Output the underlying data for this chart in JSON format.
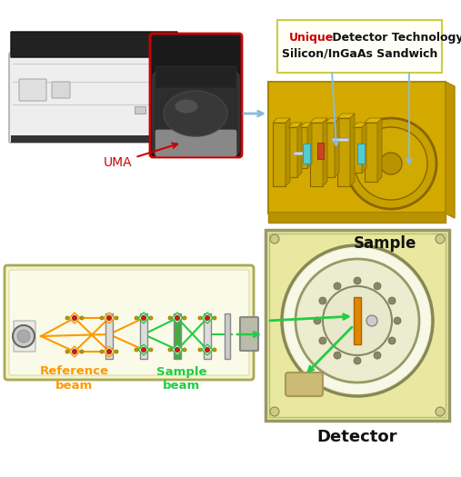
{
  "background_color": "#ffffff",
  "top": {
    "uma_label": "UMA",
    "uma_label_color": "#cc0000",
    "red_box_color": "#cc0000",
    "arrow_color": "#88bbdd",
    "det_box_border": "#cccc44",
    "det_text_unique": "Unique",
    "det_text_unique_color": "#cc0000",
    "det_text_rest1": " Detector Technology",
    "det_text_line2": "Silicon/InGaAs Sandwich",
    "det_text_color": "#111111"
  },
  "bottom": {
    "spec_bg": "#f5f5cc",
    "spec_border": "#aaa855",
    "det_bg": "#e8e8a0",
    "det_border": "#999966",
    "ref_color": "#ff9900",
    "sam_color": "#22cc44",
    "ref_label": "Reference\nbeam",
    "sam_label": "Sample\nbeam",
    "sample_text": "Sample",
    "detector_text": "Detector"
  }
}
